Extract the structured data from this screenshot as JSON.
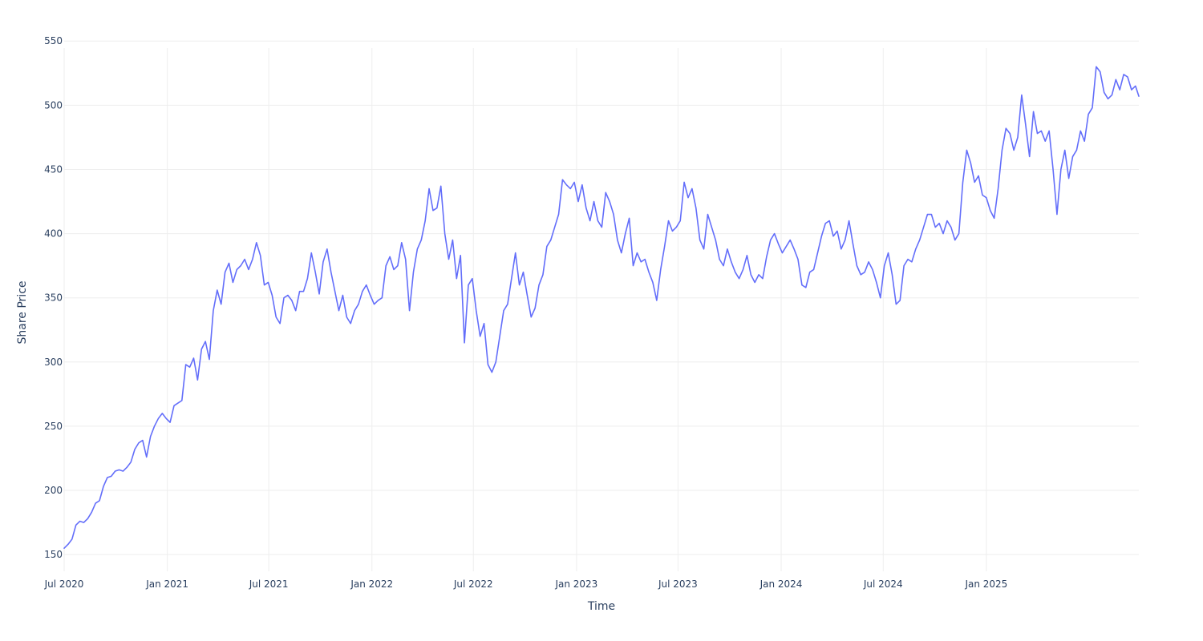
{
  "chart_data": {
    "type": "line",
    "title": "",
    "xlabel": "Time",
    "ylabel": "Share Price",
    "x_range": [
      "2020-07-01",
      "2025-09-30"
    ],
    "ylim": [
      137,
      557
    ],
    "y_ticks": [
      150,
      200,
      250,
      300,
      350,
      400,
      450,
      500,
      550
    ],
    "x_ticks": [
      {
        "date": "2020-07-01",
        "label": "Jul 2020"
      },
      {
        "date": "2021-01-01",
        "label": "Jan 2021"
      },
      {
        "date": "2021-07-01",
        "label": "Jul 2021"
      },
      {
        "date": "2022-01-01",
        "label": "Jan 2022"
      },
      {
        "date": "2022-07-01",
        "label": "Jul 2022"
      },
      {
        "date": "2023-01-01",
        "label": "Jan 2023"
      },
      {
        "date": "2023-07-01",
        "label": "Jul 2023"
      },
      {
        "date": "2024-01-01",
        "label": "Jan 2024"
      },
      {
        "date": "2024-07-01",
        "label": "Jul 2024"
      },
      {
        "date": "2025-01-01",
        "label": "Jan 2025"
      }
    ],
    "grid": true,
    "legend": "none",
    "series": [
      {
        "color": "#636efa",
        "points": [
          [
            "2020-07-01",
            155
          ],
          [
            "2020-07-08",
            158
          ],
          [
            "2020-07-15",
            162
          ],
          [
            "2020-07-22",
            173
          ],
          [
            "2020-07-29",
            176
          ],
          [
            "2020-08-05",
            175
          ],
          [
            "2020-08-12",
            178
          ],
          [
            "2020-08-19",
            183
          ],
          [
            "2020-08-26",
            190
          ],
          [
            "2020-09-02",
            192
          ],
          [
            "2020-09-09",
            203
          ],
          [
            "2020-09-16",
            210
          ],
          [
            "2020-09-23",
            211
          ],
          [
            "2020-09-30",
            215
          ],
          [
            "2020-10-07",
            216
          ],
          [
            "2020-10-14",
            215
          ],
          [
            "2020-10-21",
            218
          ],
          [
            "2020-10-28",
            222
          ],
          [
            "2020-11-04",
            232
          ],
          [
            "2020-11-11",
            237
          ],
          [
            "2020-11-18",
            239
          ],
          [
            "2020-11-25",
            226
          ],
          [
            "2020-12-02",
            242
          ],
          [
            "2020-12-09",
            250
          ],
          [
            "2020-12-16",
            256
          ],
          [
            "2020-12-23",
            260
          ],
          [
            "2020-12-30",
            256
          ],
          [
            "2021-01-06",
            253
          ],
          [
            "2021-01-13",
            266
          ],
          [
            "2021-01-20",
            268
          ],
          [
            "2021-01-27",
            270
          ],
          [
            "2021-02-03",
            298
          ],
          [
            "2021-02-10",
            296
          ],
          [
            "2021-02-17",
            303
          ],
          [
            "2021-02-24",
            286
          ],
          [
            "2021-03-03",
            310
          ],
          [
            "2021-03-10",
            316
          ],
          [
            "2021-03-17",
            302
          ],
          [
            "2021-03-24",
            340
          ],
          [
            "2021-03-31",
            356
          ],
          [
            "2021-04-07",
            345
          ],
          [
            "2021-04-14",
            370
          ],
          [
            "2021-04-21",
            377
          ],
          [
            "2021-04-28",
            362
          ],
          [
            "2021-05-05",
            372
          ],
          [
            "2021-05-12",
            375
          ],
          [
            "2021-05-19",
            380
          ],
          [
            "2021-05-26",
            372
          ],
          [
            "2021-06-02",
            380
          ],
          [
            "2021-06-09",
            393
          ],
          [
            "2021-06-16",
            383
          ],
          [
            "2021-06-23",
            360
          ],
          [
            "2021-06-30",
            362
          ],
          [
            "2021-07-07",
            352
          ],
          [
            "2021-07-14",
            335
          ],
          [
            "2021-07-21",
            330
          ],
          [
            "2021-07-28",
            350
          ],
          [
            "2021-08-04",
            352
          ],
          [
            "2021-08-11",
            348
          ],
          [
            "2021-08-18",
            340
          ],
          [
            "2021-08-25",
            355
          ],
          [
            "2021-09-01",
            355
          ],
          [
            "2021-09-08",
            365
          ],
          [
            "2021-09-15",
            385
          ],
          [
            "2021-09-22",
            370
          ],
          [
            "2021-09-29",
            353
          ],
          [
            "2021-10-06",
            378
          ],
          [
            "2021-10-13",
            388
          ],
          [
            "2021-10-20",
            370
          ],
          [
            "2021-10-27",
            355
          ],
          [
            "2021-11-03",
            340
          ],
          [
            "2021-11-10",
            352
          ],
          [
            "2021-11-17",
            335
          ],
          [
            "2021-11-24",
            330
          ],
          [
            "2021-12-01",
            340
          ],
          [
            "2021-12-08",
            345
          ],
          [
            "2021-12-15",
            355
          ],
          [
            "2021-12-22",
            360
          ],
          [
            "2021-12-29",
            352
          ],
          [
            "2022-01-05",
            345
          ],
          [
            "2022-01-12",
            348
          ],
          [
            "2022-01-19",
            350
          ],
          [
            "2022-01-26",
            375
          ],
          [
            "2022-02-02",
            382
          ],
          [
            "2022-02-09",
            372
          ],
          [
            "2022-02-16",
            375
          ],
          [
            "2022-02-23",
            393
          ],
          [
            "2022-03-02",
            380
          ],
          [
            "2022-03-09",
            340
          ],
          [
            "2022-03-16",
            370
          ],
          [
            "2022-03-23",
            388
          ],
          [
            "2022-03-30",
            395
          ],
          [
            "2022-04-06",
            410
          ],
          [
            "2022-04-13",
            435
          ],
          [
            "2022-04-20",
            418
          ],
          [
            "2022-04-27",
            420
          ],
          [
            "2022-05-04",
            437
          ],
          [
            "2022-05-11",
            400
          ],
          [
            "2022-05-18",
            380
          ],
          [
            "2022-05-25",
            395
          ],
          [
            "2022-06-01",
            365
          ],
          [
            "2022-06-08",
            383
          ],
          [
            "2022-06-15",
            315
          ],
          [
            "2022-06-22",
            360
          ],
          [
            "2022-06-29",
            365
          ],
          [
            "2022-07-06",
            340
          ],
          [
            "2022-07-13",
            320
          ],
          [
            "2022-07-20",
            330
          ],
          [
            "2022-07-27",
            298
          ],
          [
            "2022-08-03",
            292
          ],
          [
            "2022-08-10",
            300
          ],
          [
            "2022-08-17",
            320
          ],
          [
            "2022-08-24",
            340
          ],
          [
            "2022-08-31",
            345
          ],
          [
            "2022-09-07",
            365
          ],
          [
            "2022-09-14",
            385
          ],
          [
            "2022-09-21",
            360
          ],
          [
            "2022-09-28",
            370
          ],
          [
            "2022-10-05",
            352
          ],
          [
            "2022-10-12",
            335
          ],
          [
            "2022-10-19",
            342
          ],
          [
            "2022-10-26",
            360
          ],
          [
            "2022-11-02",
            368
          ],
          [
            "2022-11-09",
            390
          ],
          [
            "2022-11-16",
            395
          ],
          [
            "2022-11-23",
            405
          ],
          [
            "2022-11-30",
            415
          ],
          [
            "2022-12-07",
            442
          ],
          [
            "2022-12-14",
            438
          ],
          [
            "2022-12-21",
            435
          ],
          [
            "2022-12-28",
            440
          ],
          [
            "2023-01-04",
            425
          ],
          [
            "2023-01-11",
            438
          ],
          [
            "2023-01-18",
            420
          ],
          [
            "2023-01-25",
            410
          ],
          [
            "2023-02-01",
            425
          ],
          [
            "2023-02-08",
            410
          ],
          [
            "2023-02-15",
            405
          ],
          [
            "2023-02-22",
            432
          ],
          [
            "2023-03-01",
            425
          ],
          [
            "2023-03-08",
            415
          ],
          [
            "2023-03-15",
            395
          ],
          [
            "2023-03-22",
            385
          ],
          [
            "2023-03-29",
            400
          ],
          [
            "2023-04-05",
            412
          ],
          [
            "2023-04-12",
            375
          ],
          [
            "2023-04-19",
            385
          ],
          [
            "2023-04-26",
            378
          ],
          [
            "2023-05-03",
            380
          ],
          [
            "2023-05-10",
            370
          ],
          [
            "2023-05-17",
            362
          ],
          [
            "2023-05-24",
            348
          ],
          [
            "2023-05-31",
            372
          ],
          [
            "2023-06-07",
            390
          ],
          [
            "2023-06-14",
            410
          ],
          [
            "2023-06-21",
            402
          ],
          [
            "2023-06-28",
            405
          ],
          [
            "2023-07-05",
            410
          ],
          [
            "2023-07-12",
            440
          ],
          [
            "2023-07-19",
            428
          ],
          [
            "2023-07-26",
            435
          ],
          [
            "2023-08-02",
            420
          ],
          [
            "2023-08-09",
            395
          ],
          [
            "2023-08-16",
            388
          ],
          [
            "2023-08-23",
            415
          ],
          [
            "2023-08-30",
            405
          ],
          [
            "2023-09-06",
            395
          ],
          [
            "2023-09-13",
            380
          ],
          [
            "2023-09-20",
            375
          ],
          [
            "2023-09-27",
            388
          ],
          [
            "2023-10-04",
            378
          ],
          [
            "2023-10-11",
            370
          ],
          [
            "2023-10-18",
            365
          ],
          [
            "2023-10-25",
            372
          ],
          [
            "2023-11-01",
            383
          ],
          [
            "2023-11-08",
            368
          ],
          [
            "2023-11-15",
            362
          ],
          [
            "2023-11-22",
            368
          ],
          [
            "2023-11-29",
            365
          ],
          [
            "2023-12-06",
            382
          ],
          [
            "2023-12-13",
            395
          ],
          [
            "2023-12-20",
            400
          ],
          [
            "2023-12-27",
            392
          ],
          [
            "2024-01-03",
            385
          ],
          [
            "2024-01-10",
            390
          ],
          [
            "2024-01-17",
            395
          ],
          [
            "2024-01-24",
            388
          ],
          [
            "2024-01-31",
            380
          ],
          [
            "2024-02-07",
            360
          ],
          [
            "2024-02-14",
            358
          ],
          [
            "2024-02-21",
            370
          ],
          [
            "2024-02-28",
            372
          ],
          [
            "2024-03-06",
            385
          ],
          [
            "2024-03-13",
            398
          ],
          [
            "2024-03-20",
            408
          ],
          [
            "2024-03-27",
            410
          ],
          [
            "2024-04-03",
            398
          ],
          [
            "2024-04-10",
            402
          ],
          [
            "2024-04-17",
            388
          ],
          [
            "2024-04-24",
            395
          ],
          [
            "2024-05-01",
            410
          ],
          [
            "2024-05-08",
            392
          ],
          [
            "2024-05-15",
            375
          ],
          [
            "2024-05-22",
            368
          ],
          [
            "2024-05-29",
            370
          ],
          [
            "2024-06-05",
            378
          ],
          [
            "2024-06-12",
            372
          ],
          [
            "2024-06-19",
            362
          ],
          [
            "2024-06-26",
            350
          ],
          [
            "2024-07-03",
            375
          ],
          [
            "2024-07-10",
            385
          ],
          [
            "2024-07-17",
            368
          ],
          [
            "2024-07-24",
            345
          ],
          [
            "2024-07-31",
            348
          ],
          [
            "2024-08-07",
            375
          ],
          [
            "2024-08-14",
            380
          ],
          [
            "2024-08-21",
            378
          ],
          [
            "2024-08-28",
            388
          ],
          [
            "2024-09-04",
            395
          ],
          [
            "2024-09-11",
            405
          ],
          [
            "2024-09-18",
            415
          ],
          [
            "2024-09-25",
            415
          ],
          [
            "2024-10-02",
            405
          ],
          [
            "2024-10-09",
            408
          ],
          [
            "2024-10-16",
            400
          ],
          [
            "2024-10-23",
            410
          ],
          [
            "2024-10-30",
            405
          ],
          [
            "2024-11-06",
            395
          ],
          [
            "2024-11-13",
            400
          ],
          [
            "2024-11-20",
            440
          ],
          [
            "2024-11-27",
            465
          ],
          [
            "2024-12-04",
            455
          ],
          [
            "2024-12-11",
            440
          ],
          [
            "2024-12-18",
            445
          ],
          [
            "2024-12-25",
            430
          ],
          [
            "2025-01-01",
            428
          ],
          [
            "2025-01-08",
            418
          ],
          [
            "2025-01-15",
            412
          ],
          [
            "2025-01-22",
            435
          ],
          [
            "2025-01-29",
            465
          ],
          [
            "2025-02-05",
            482
          ],
          [
            "2025-02-12",
            478
          ],
          [
            "2025-02-19",
            465
          ],
          [
            "2025-02-26",
            475
          ],
          [
            "2025-03-05",
            508
          ],
          [
            "2025-03-12",
            485
          ],
          [
            "2025-03-19",
            460
          ],
          [
            "2025-03-26",
            495
          ],
          [
            "2025-04-02",
            478
          ],
          [
            "2025-04-09",
            480
          ],
          [
            "2025-04-16",
            472
          ],
          [
            "2025-04-23",
            480
          ],
          [
            "2025-04-30",
            450
          ],
          [
            "2025-05-07",
            415
          ],
          [
            "2025-05-14",
            450
          ],
          [
            "2025-05-21",
            465
          ],
          [
            "2025-05-28",
            443
          ],
          [
            "2025-06-04",
            460
          ],
          [
            "2025-06-11",
            465
          ],
          [
            "2025-06-18",
            480
          ],
          [
            "2025-06-25",
            472
          ],
          [
            "2025-07-02",
            493
          ],
          [
            "2025-07-09",
            498
          ],
          [
            "2025-07-16",
            530
          ],
          [
            "2025-07-23",
            526
          ],
          [
            "2025-07-30",
            510
          ],
          [
            "2025-08-06",
            505
          ],
          [
            "2025-08-13",
            508
          ],
          [
            "2025-08-20",
            520
          ],
          [
            "2025-08-27",
            512
          ],
          [
            "2025-09-03",
            524
          ],
          [
            "2025-09-10",
            522
          ],
          [
            "2025-09-17",
            512
          ],
          [
            "2025-09-24",
            515
          ],
          [
            "2025-09-30",
            507
          ]
        ]
      }
    ]
  }
}
